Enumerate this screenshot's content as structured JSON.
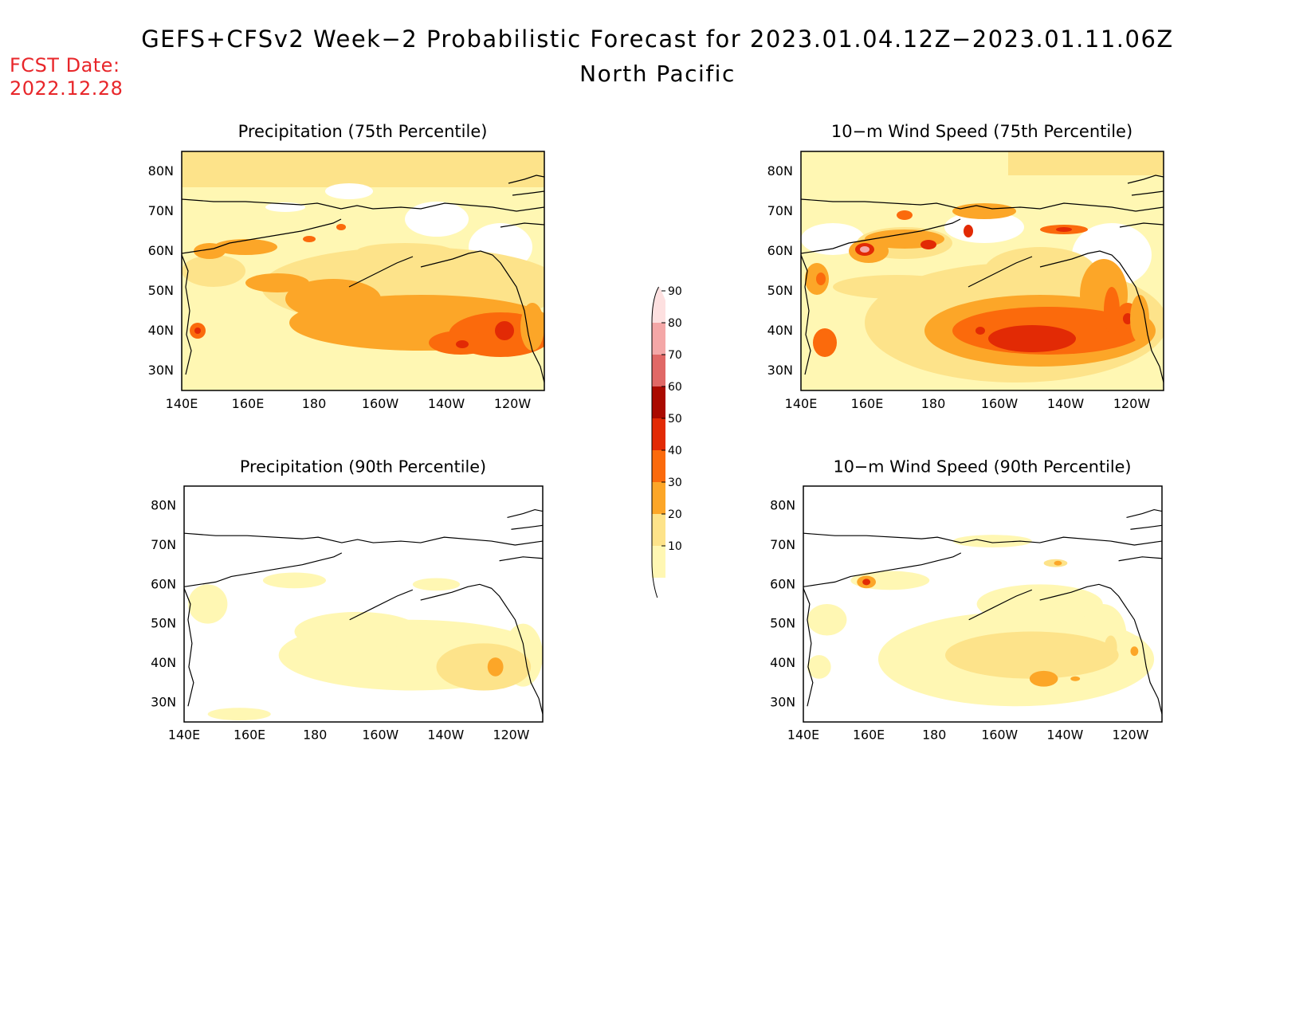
{
  "title": "GEFS+CFSv2 Week−2 Probabilistic Forecast for 2023.01.04.12Z−2023.01.11.06Z",
  "region": "North Pacific",
  "fcst_date_label": "FCST Date:",
  "fcst_date_value": "2022.12.28",
  "panels": [
    {
      "title": "Precipitation (75th Percentile)"
    },
    {
      "title": "10−m Wind Speed (75th Percentile)"
    },
    {
      "title": "Precipitation (90th Percentile)"
    },
    {
      "title": "10−m Wind Speed (90th Percentile)"
    }
  ],
  "lon_ticks": [
    "140E",
    "160E",
    "180",
    "160W",
    "140W",
    "120W"
  ],
  "lat_ticks": [
    "80N",
    "70N",
    "60N",
    "50N",
    "40N",
    "30N"
  ],
  "colorbar": {
    "levels": [
      "10",
      "20",
      "30",
      "40",
      "50",
      "60",
      "70",
      "80",
      "90"
    ],
    "colors": [
      "#fff7b3",
      "#fde38a",
      "#fca628",
      "#fb6a0c",
      "#e22a05",
      "#aa0a00",
      "#e06866",
      "#f4a7a7",
      "#fde0e0"
    ]
  }
}
